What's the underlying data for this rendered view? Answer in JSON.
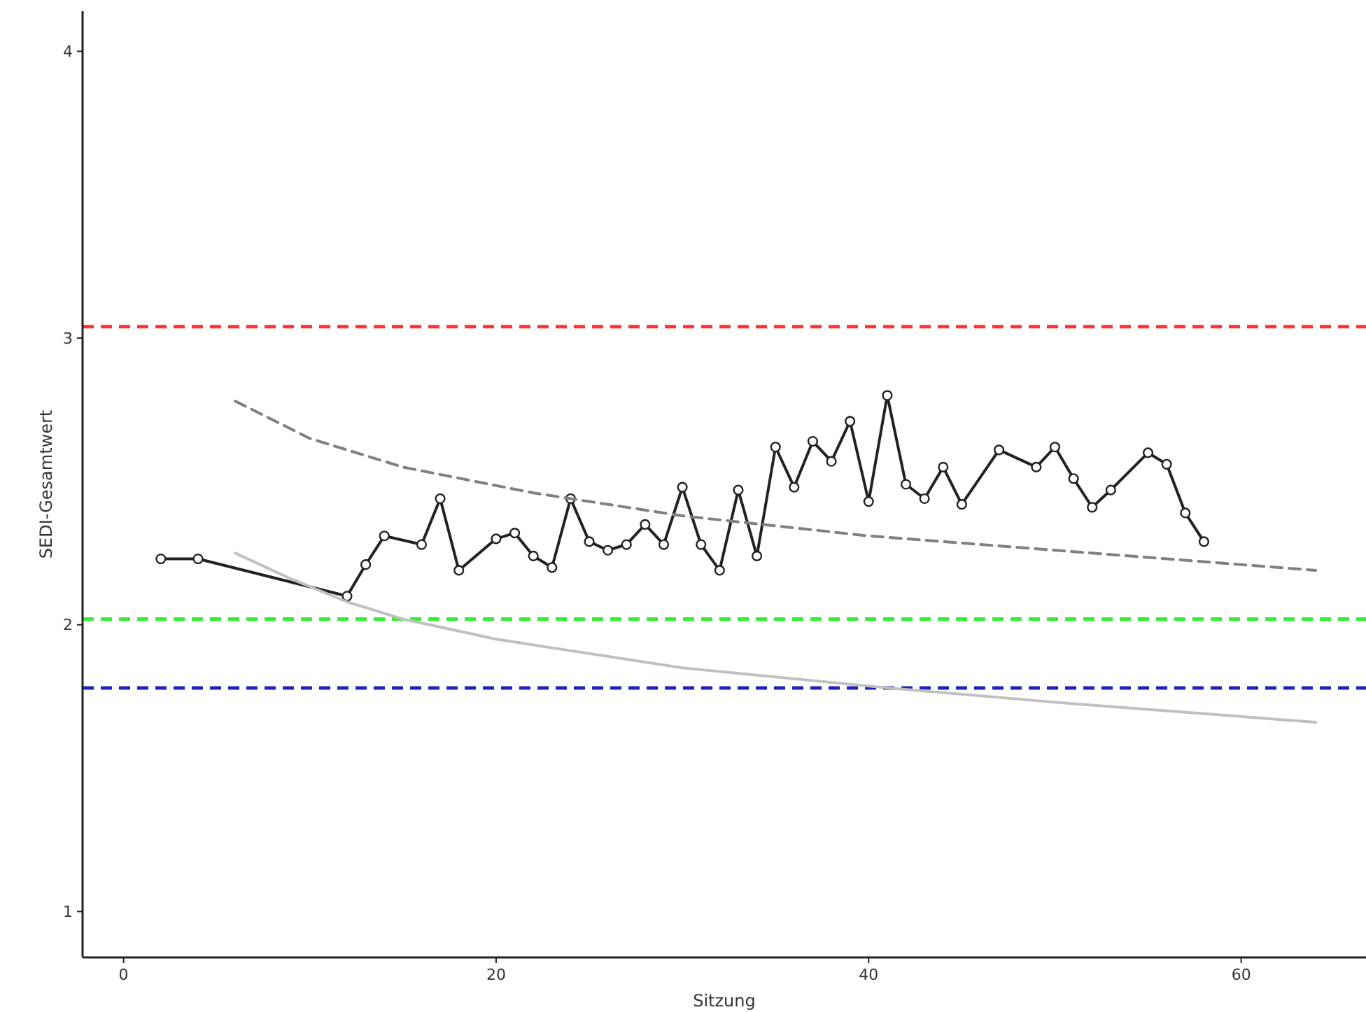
{
  "chart_data": {
    "type": "line",
    "xlabel": "Sitzung",
    "ylabel": "SEDI-Gesamtwert",
    "xlim": [
      -2.2,
      66.7
    ],
    "ylim": [
      0.84,
      4.14
    ],
    "xticks": [
      0,
      20,
      40,
      60
    ],
    "yticks": [
      1,
      2,
      3,
      4
    ],
    "grid": false,
    "marker": "circle",
    "series": [
      {
        "color": "#222222",
        "x": [
          2,
          4,
          12,
          13,
          14,
          16,
          17,
          18,
          20,
          21,
          22,
          23,
          24,
          25,
          26,
          27,
          28,
          29,
          30,
          31,
          32,
          33,
          34,
          35,
          36,
          37,
          38,
          39,
          40,
          41,
          42,
          43,
          44,
          45,
          47,
          49,
          50,
          51,
          52,
          53,
          55,
          56,
          57,
          58
        ],
        "values": [
          2.23,
          2.23,
          2.1,
          2.21,
          2.31,
          2.28,
          2.44,
          2.19,
          2.3,
          2.32,
          2.24,
          2.2,
          2.44,
          2.29,
          2.26,
          2.28,
          2.35,
          2.28,
          2.48,
          2.28,
          2.19,
          2.47,
          2.24,
          2.62,
          2.48,
          2.64,
          2.57,
          2.71,
          2.43,
          2.8,
          2.49,
          2.44,
          2.55,
          2.42,
          2.61,
          2.55,
          2.62,
          2.51,
          2.41,
          2.47,
          2.6,
          2.56,
          2.39,
          2.29
        ]
      },
      {
        "color": "#808080",
        "line_style": "dashed",
        "marker": "none",
        "x": [
          6,
          10,
          15,
          22,
          30,
          40,
          50,
          64
        ],
        "values": [
          2.78,
          2.65,
          2.55,
          2.46,
          2.38,
          2.31,
          2.26,
          2.19
        ]
      },
      {
        "color": "#c0c0c0",
        "marker": "none",
        "x": [
          6,
          9,
          12,
          15,
          20,
          30,
          41,
          50,
          64
        ],
        "values": [
          2.25,
          2.16,
          2.08,
          2.02,
          1.95,
          1.85,
          1.78,
          1.73,
          1.66
        ]
      }
    ],
    "ref_lines": [
      {
        "axis": "y",
        "value": 3.04,
        "color": "#ff3333",
        "line_style": "dashed"
      },
      {
        "axis": "y",
        "value": 2.02,
        "color": "#33ee33",
        "line_style": "dashed"
      },
      {
        "axis": "y",
        "value": 1.78,
        "color": "#2222bb",
        "line_style": "dashed"
      }
    ]
  }
}
